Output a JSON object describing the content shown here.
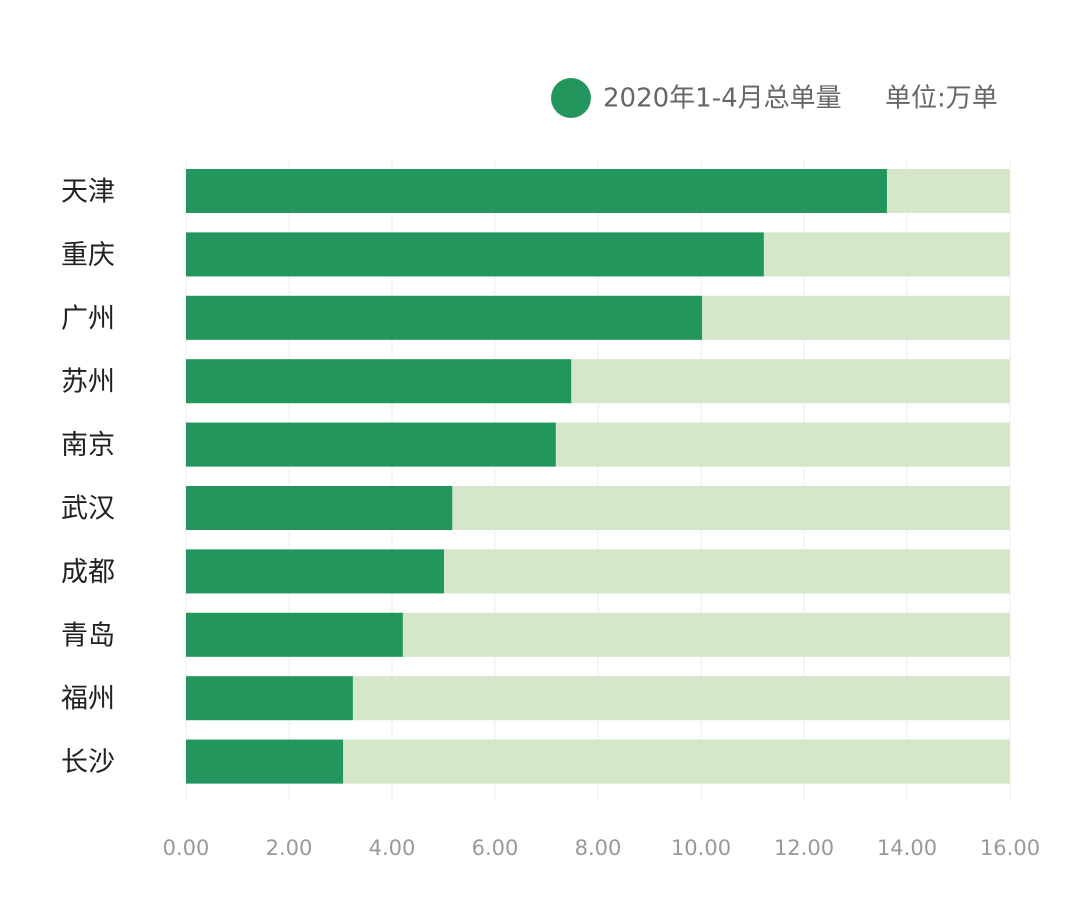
{
  "chart_data": {
    "type": "hbar",
    "legend_label": "2020年1-4月总单量",
    "unit_note": "单位:万单",
    "categories": [
      "天津",
      "重庆",
      "广州",
      "苏州",
      "南京",
      "武汉",
      "成都",
      "青岛",
      "福州",
      "长沙"
    ],
    "series": [
      {
        "name": "2020年1-4月总单量",
        "color": "#22965d",
        "values": [
          13.61,
          11.22,
          10.02,
          7.48,
          7.18,
          5.17,
          5.01,
          4.21,
          3.24,
          3.05
        ]
      }
    ],
    "track_color": "#d4e8c9",
    "xlim": [
      0,
      16
    ],
    "xticks": [
      {
        "value": 0,
        "label": "0.00"
      },
      {
        "value": 2,
        "label": "2.00"
      },
      {
        "value": 4,
        "label": "4.00"
      },
      {
        "value": 6,
        "label": "6.00"
      },
      {
        "value": 8,
        "label": "8.00"
      },
      {
        "value": 10,
        "label": "10.00"
      },
      {
        "value": 12,
        "label": "12.00"
      },
      {
        "value": 14,
        "label": "14.00"
      },
      {
        "value": 16,
        "label": "16.00"
      }
    ],
    "grid": true
  }
}
